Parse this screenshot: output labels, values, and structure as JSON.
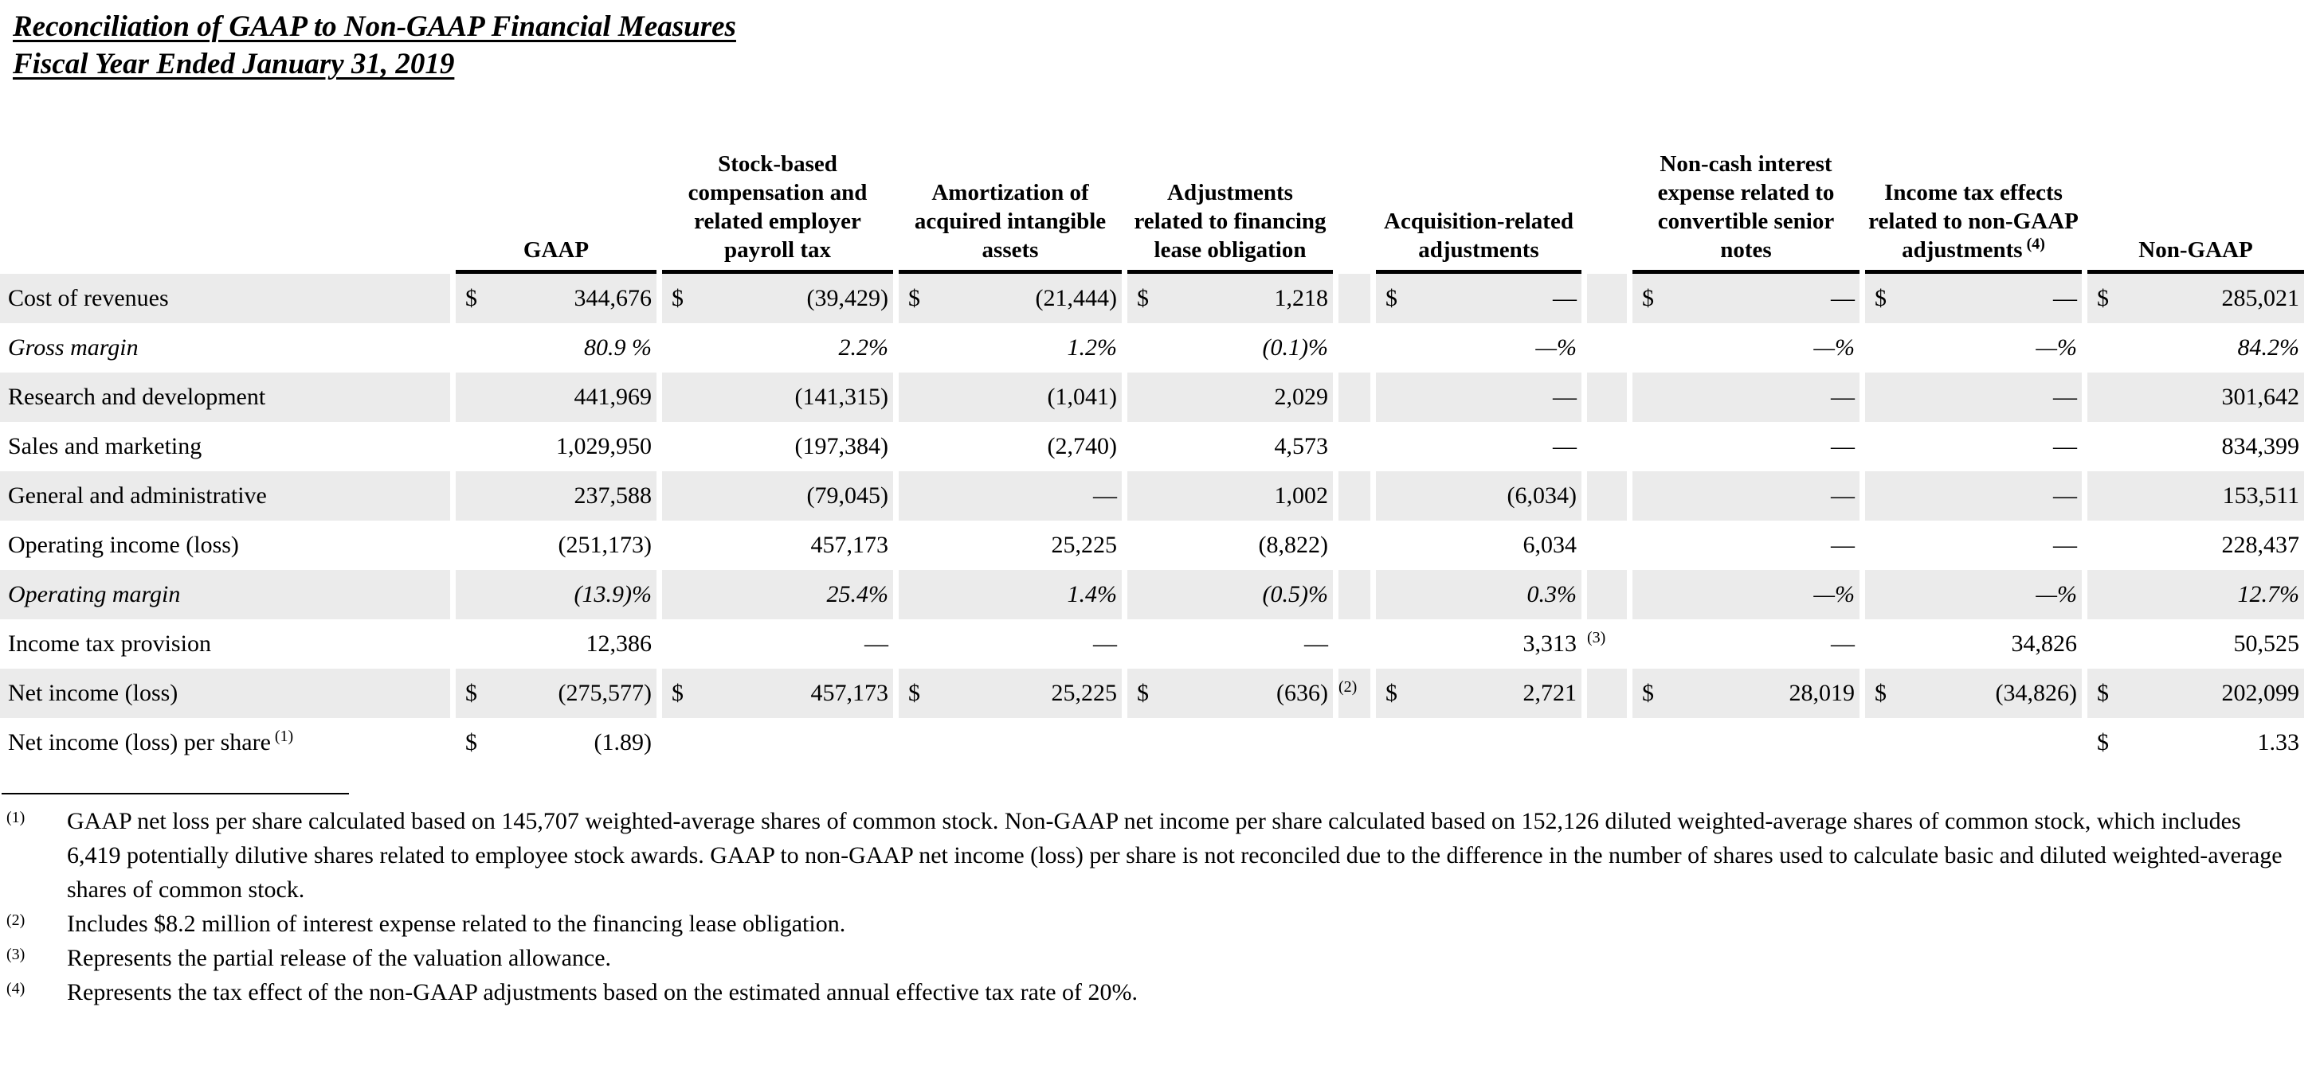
{
  "title": {
    "line1": "Reconciliation of GAAP to Non-GAAP Financial Measures",
    "line2": "Fiscal Year Ended January 31, 2019"
  },
  "table": {
    "column_headers": [
      {
        "label": "GAAP",
        "sup": ""
      },
      {
        "label": "Stock-based compensation and related employer payroll tax",
        "sup": ""
      },
      {
        "label": "Amortization of acquired intangible assets",
        "sup": ""
      },
      {
        "label": "Adjustments related to financing lease obligation",
        "sup": ""
      },
      {
        "label": "Acquisition-related adjustments",
        "sup": ""
      },
      {
        "label": "Non-cash interest expense related to convertible senior notes",
        "sup": ""
      },
      {
        "label": "Income tax effects related to non-GAAP adjustments",
        "sup": "(4)"
      },
      {
        "label": "Non-GAAP",
        "sup": ""
      }
    ],
    "rows": [
      {
        "label": "Cost of revenues",
        "label_sup": "",
        "italic": false,
        "shaded": true,
        "cells": [
          {
            "cur": "$",
            "val": "344,676"
          },
          {
            "cur": "$",
            "val": "(39,429)"
          },
          {
            "cur": "$",
            "val": "(21,444)"
          },
          {
            "cur": "$",
            "val": "1,218",
            "fn": ""
          },
          {
            "cur": "$",
            "val": "—",
            "fn": ""
          },
          {
            "cur": "$",
            "val": "—"
          },
          {
            "cur": "$",
            "val": "—"
          },
          {
            "cur": "$",
            "val": "285,021"
          }
        ]
      },
      {
        "label": "Gross margin",
        "label_sup": "",
        "italic": true,
        "shaded": false,
        "cells": [
          {
            "cur": "",
            "val": "80.9 %"
          },
          {
            "cur": "",
            "val": "2.2%"
          },
          {
            "cur": "",
            "val": "1.2%"
          },
          {
            "cur": "",
            "val": "(0.1)%",
            "fn": ""
          },
          {
            "cur": "",
            "val": "—%",
            "fn": ""
          },
          {
            "cur": "",
            "val": "—%"
          },
          {
            "cur": "",
            "val": "—%"
          },
          {
            "cur": "",
            "val": "84.2%"
          }
        ]
      },
      {
        "label": "Research and development",
        "label_sup": "",
        "italic": false,
        "shaded": true,
        "cells": [
          {
            "cur": "",
            "val": "441,969"
          },
          {
            "cur": "",
            "val": "(141,315)"
          },
          {
            "cur": "",
            "val": "(1,041)"
          },
          {
            "cur": "",
            "val": "2,029",
            "fn": ""
          },
          {
            "cur": "",
            "val": "—",
            "fn": ""
          },
          {
            "cur": "",
            "val": "—"
          },
          {
            "cur": "",
            "val": "—"
          },
          {
            "cur": "",
            "val": "301,642"
          }
        ]
      },
      {
        "label": "Sales and marketing",
        "label_sup": "",
        "italic": false,
        "shaded": false,
        "cells": [
          {
            "cur": "",
            "val": "1,029,950"
          },
          {
            "cur": "",
            "val": "(197,384)"
          },
          {
            "cur": "",
            "val": "(2,740)"
          },
          {
            "cur": "",
            "val": "4,573",
            "fn": ""
          },
          {
            "cur": "",
            "val": "—",
            "fn": ""
          },
          {
            "cur": "",
            "val": "—"
          },
          {
            "cur": "",
            "val": "—"
          },
          {
            "cur": "",
            "val": "834,399"
          }
        ]
      },
      {
        "label": "General and administrative",
        "label_sup": "",
        "italic": false,
        "shaded": true,
        "cells": [
          {
            "cur": "",
            "val": "237,588"
          },
          {
            "cur": "",
            "val": "(79,045)"
          },
          {
            "cur": "",
            "val": "—"
          },
          {
            "cur": "",
            "val": "1,002",
            "fn": ""
          },
          {
            "cur": "",
            "val": "(6,034)",
            "fn": ""
          },
          {
            "cur": "",
            "val": "—"
          },
          {
            "cur": "",
            "val": "—"
          },
          {
            "cur": "",
            "val": "153,511"
          }
        ]
      },
      {
        "label": "Operating income (loss)",
        "label_sup": "",
        "italic": false,
        "shaded": false,
        "cells": [
          {
            "cur": "",
            "val": "(251,173)"
          },
          {
            "cur": "",
            "val": "457,173"
          },
          {
            "cur": "",
            "val": "25,225"
          },
          {
            "cur": "",
            "val": "(8,822)",
            "fn": ""
          },
          {
            "cur": "",
            "val": "6,034",
            "fn": ""
          },
          {
            "cur": "",
            "val": "—"
          },
          {
            "cur": "",
            "val": "—"
          },
          {
            "cur": "",
            "val": "228,437"
          }
        ]
      },
      {
        "label": "Operating margin",
        "label_sup": "",
        "italic": true,
        "shaded": true,
        "cells": [
          {
            "cur": "",
            "val": "(13.9)%"
          },
          {
            "cur": "",
            "val": "25.4%"
          },
          {
            "cur": "",
            "val": "1.4%"
          },
          {
            "cur": "",
            "val": "(0.5)%",
            "fn": ""
          },
          {
            "cur": "",
            "val": "0.3%",
            "fn": ""
          },
          {
            "cur": "",
            "val": "—%"
          },
          {
            "cur": "",
            "val": "—%"
          },
          {
            "cur": "",
            "val": "12.7%"
          }
        ]
      },
      {
        "label": "Income tax provision",
        "label_sup": "",
        "italic": false,
        "shaded": false,
        "cells": [
          {
            "cur": "",
            "val": "12,386"
          },
          {
            "cur": "",
            "val": "—"
          },
          {
            "cur": "",
            "val": "—"
          },
          {
            "cur": "",
            "val": "—",
            "fn": ""
          },
          {
            "cur": "",
            "val": "3,313",
            "fn": "(3)"
          },
          {
            "cur": "",
            "val": "—"
          },
          {
            "cur": "",
            "val": "34,826"
          },
          {
            "cur": "",
            "val": "50,525"
          }
        ]
      },
      {
        "label": "Net income (loss)",
        "label_sup": "",
        "italic": false,
        "shaded": true,
        "cells": [
          {
            "cur": "$",
            "val": "(275,577)"
          },
          {
            "cur": "$",
            "val": "457,173"
          },
          {
            "cur": "$",
            "val": "25,225"
          },
          {
            "cur": "$",
            "val": "(636)",
            "fn": "(2)"
          },
          {
            "cur": "$",
            "val": "2,721",
            "fn": ""
          },
          {
            "cur": "$",
            "val": "28,019"
          },
          {
            "cur": "$",
            "val": "(34,826)"
          },
          {
            "cur": "$",
            "val": "202,099"
          }
        ]
      },
      {
        "label": "Net income (loss) per share",
        "label_sup": "(1)",
        "italic": false,
        "shaded": false,
        "cells": [
          {
            "cur": "$",
            "val": "(1.89)"
          },
          {
            "cur": "",
            "val": ""
          },
          {
            "cur": "",
            "val": ""
          },
          {
            "cur": "",
            "val": "",
            "fn": ""
          },
          {
            "cur": "",
            "val": "",
            "fn": ""
          },
          {
            "cur": "",
            "val": ""
          },
          {
            "cur": "",
            "val": ""
          },
          {
            "cur": "$",
            "val": "1.33"
          }
        ]
      }
    ]
  },
  "footnotes": [
    {
      "marker": "(1)",
      "text": "GAAP net loss per share calculated based on 145,707 weighted-average shares of common stock. Non-GAAP net income per share calculated based on 152,126 diluted weighted-average shares of common stock, which includes 6,419 potentially dilutive shares related to employee stock awards. GAAP to non-GAAP net income (loss) per share is not reconciled due to the difference in the number of shares used to calculate basic and diluted weighted-average shares of common stock."
    },
    {
      "marker": "(2)",
      "text": "Includes $8.2 million of interest expense related to the financing lease obligation."
    },
    {
      "marker": "(3)",
      "text": "Represents the partial release of the valuation allowance."
    },
    {
      "marker": "(4)",
      "text": "Represents the tax effect of the non-GAAP adjustments based on the estimated annual effective tax rate of 20%."
    }
  ]
}
